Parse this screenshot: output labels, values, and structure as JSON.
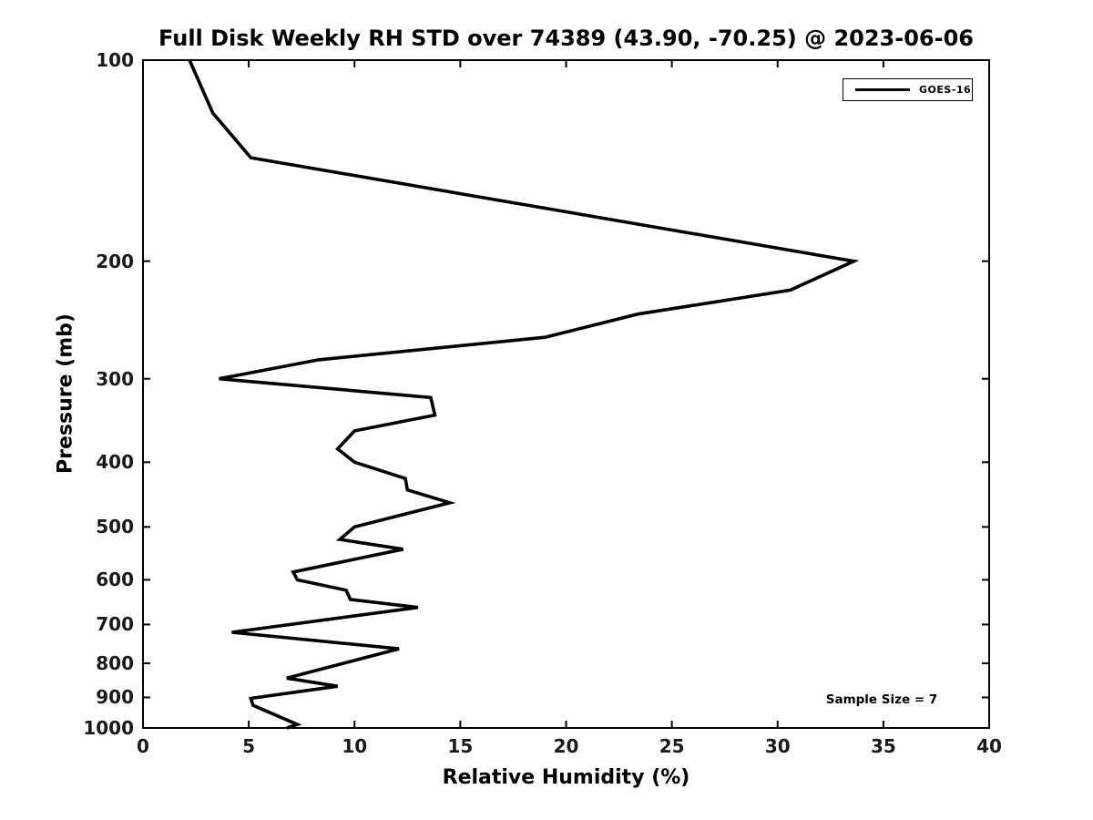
{
  "chart_data": {
    "type": "line",
    "title": "Full Disk Weekly RH STD over 74389 (43.90, -70.25) @ 2023-06-06",
    "xlabel": "Relative Humidity (%)",
    "ylabel": "Pressure (mb)",
    "xlim": [
      0,
      40
    ],
    "xticks": [
      0,
      5,
      10,
      15,
      20,
      25,
      30,
      35,
      40
    ],
    "ylim": [
      100,
      1000
    ],
    "yticks": [
      100,
      200,
      300,
      400,
      500,
      600,
      700,
      800,
      900,
      1000
    ],
    "y_scale": "log",
    "y_inverted": true,
    "grid": false,
    "frame_box": true,
    "line_color": "#000000",
    "legend": {
      "position": "top-right",
      "entries": [
        {
          "label": "GOES-16",
          "color": "#000000"
        }
      ]
    },
    "annotations": [
      {
        "text": "Sample Size = 7",
        "x_pct": 35,
        "pressure_mb": 900
      }
    ],
    "series": [
      {
        "name": "GOES-16",
        "color": "#000000",
        "points_pressure_mb_vs_rh_std_pct": [
          [
            100,
            2.2
          ],
          [
            120,
            3.3
          ],
          [
            140,
            5.1
          ],
          [
            200,
            33.6
          ],
          [
            221,
            30.6
          ],
          [
            240,
            23.4
          ],
          [
            260,
            19.0
          ],
          [
            281,
            8.3
          ],
          [
            300,
            3.6
          ],
          [
            320,
            13.6
          ],
          [
            340,
            13.8
          ],
          [
            359,
            10.0
          ],
          [
            382,
            9.2
          ],
          [
            400,
            10.0
          ],
          [
            423,
            12.4
          ],
          [
            440,
            12.5
          ],
          [
            460,
            14.5
          ],
          [
            500,
            10.0
          ],
          [
            522,
            9.3
          ],
          [
            540,
            12.3
          ],
          [
            584,
            7.1
          ],
          [
            600,
            7.3
          ],
          [
            622,
            9.6
          ],
          [
            642,
            9.8
          ],
          [
            660,
            13.0
          ],
          [
            719,
            4.2
          ],
          [
            761,
            12.1
          ],
          [
            842,
            6.8
          ],
          [
            866,
            9.2
          ],
          [
            903,
            5.1
          ],
          [
            925,
            5.2
          ],
          [
            988,
            7.3
          ],
          [
            1000,
            6.8
          ]
        ]
      }
    ]
  }
}
